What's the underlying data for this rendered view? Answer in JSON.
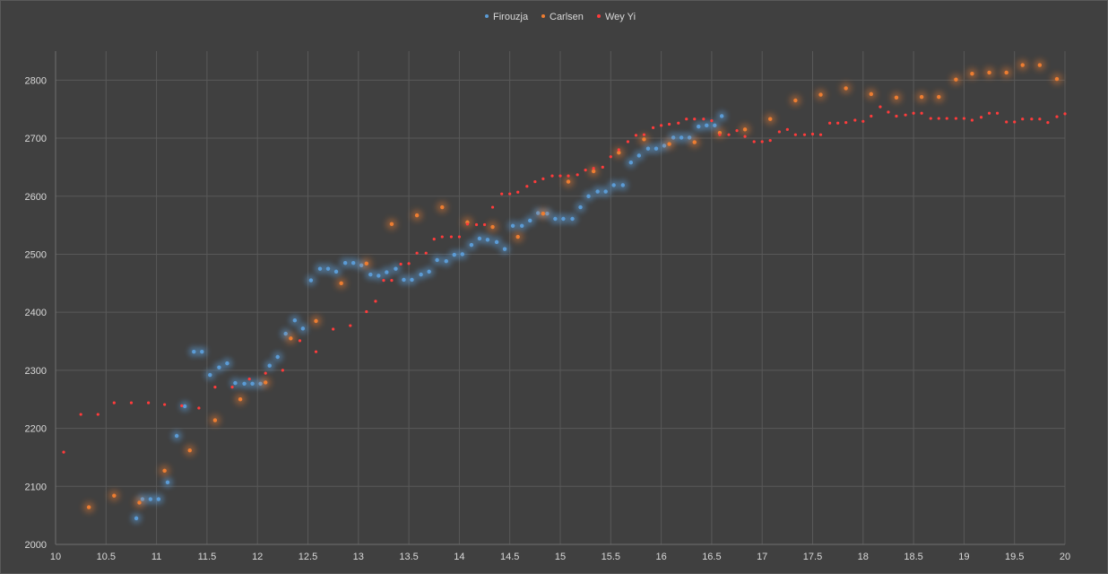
{
  "chart_data": {
    "type": "scatter",
    "title": "",
    "xlabel": "",
    "ylabel": "",
    "xlim": [
      10,
      20
    ],
    "ylim": [
      2000,
      2850
    ],
    "x_ticks": [
      10,
      10.5,
      11,
      11.5,
      12,
      12.5,
      13,
      13.5,
      14,
      14.5,
      15,
      15.5,
      16,
      16.5,
      17,
      17.5,
      18,
      18.5,
      19,
      19.5,
      20
    ],
    "y_ticks": [
      2000,
      2100,
      2200,
      2300,
      2400,
      2500,
      2600,
      2700,
      2800
    ],
    "grid": true,
    "legend_position": "top",
    "series": [
      {
        "name": "Firouzja",
        "color": "#5b9bd5",
        "glow": true,
        "points": [
          [
            10.8,
            2045
          ],
          [
            10.86,
            2078
          ],
          [
            10.94,
            2078
          ],
          [
            11.02,
            2078
          ],
          [
            11.11,
            2107
          ],
          [
            11.2,
            2187
          ],
          [
            11.28,
            2238
          ],
          [
            11.37,
            2332
          ],
          [
            11.45,
            2332
          ],
          [
            11.53,
            2292
          ],
          [
            11.62,
            2305
          ],
          [
            11.7,
            2312
          ],
          [
            11.78,
            2278
          ],
          [
            11.87,
            2277
          ],
          [
            11.95,
            2277
          ],
          [
            12.03,
            2277
          ],
          [
            12.12,
            2308
          ],
          [
            12.2,
            2323
          ],
          [
            12.28,
            2363
          ],
          [
            12.37,
            2386
          ],
          [
            12.45,
            2372
          ],
          [
            12.53,
            2455
          ],
          [
            12.62,
            2475
          ],
          [
            12.7,
            2475
          ],
          [
            12.78,
            2470
          ],
          [
            12.87,
            2485
          ],
          [
            12.95,
            2485
          ],
          [
            13.03,
            2481
          ],
          [
            13.12,
            2465
          ],
          [
            13.2,
            2463
          ],
          [
            13.28,
            2469
          ],
          [
            13.37,
            2475
          ],
          [
            13.45,
            2456
          ],
          [
            13.53,
            2456
          ],
          [
            13.62,
            2465
          ],
          [
            13.7,
            2470
          ],
          [
            13.78,
            2490
          ],
          [
            13.87,
            2488
          ],
          [
            13.95,
            2499
          ],
          [
            14.03,
            2500
          ],
          [
            14.12,
            2516
          ],
          [
            14.2,
            2527
          ],
          [
            14.28,
            2525
          ],
          [
            14.37,
            2521
          ],
          [
            14.45,
            2509
          ],
          [
            14.53,
            2549
          ],
          [
            14.62,
            2549
          ],
          [
            14.7,
            2558
          ],
          [
            14.78,
            2571
          ],
          [
            14.87,
            2570
          ],
          [
            14.95,
            2561
          ],
          [
            15.03,
            2561
          ],
          [
            15.12,
            2561
          ],
          [
            15.2,
            2581
          ],
          [
            15.28,
            2600
          ],
          [
            15.37,
            2608
          ],
          [
            15.45,
            2608
          ],
          [
            15.53,
            2619
          ],
          [
            15.62,
            2619
          ],
          [
            15.7,
            2658
          ],
          [
            15.78,
            2670
          ],
          [
            15.87,
            2682
          ],
          [
            15.95,
            2682
          ],
          [
            16.03,
            2687
          ],
          [
            16.12,
            2701
          ],
          [
            16.2,
            2701
          ],
          [
            16.28,
            2701
          ],
          [
            16.37,
            2720
          ],
          [
            16.45,
            2722
          ],
          [
            16.53,
            2722
          ],
          [
            16.6,
            2738
          ]
        ]
      },
      {
        "name": "Carlsen",
        "color": "#ed7d31",
        "glow": true,
        "points": [
          [
            10.33,
            2064
          ],
          [
            10.58,
            2084
          ],
          [
            10.83,
            2072
          ],
          [
            11.08,
            2127
          ],
          [
            11.33,
            2162
          ],
          [
            11.58,
            2214
          ],
          [
            11.83,
            2250
          ],
          [
            12.08,
            2279
          ],
          [
            12.33,
            2355
          ],
          [
            12.58,
            2385
          ],
          [
            12.83,
            2450
          ],
          [
            13.08,
            2484
          ],
          [
            13.33,
            2552
          ],
          [
            13.58,
            2567
          ],
          [
            13.83,
            2581
          ],
          [
            14.08,
            2555
          ],
          [
            14.33,
            2547
          ],
          [
            14.58,
            2530
          ],
          [
            14.83,
            2570
          ],
          [
            15.08,
            2625
          ],
          [
            15.33,
            2643
          ],
          [
            15.58,
            2675
          ],
          [
            15.83,
            2698
          ],
          [
            16.08,
            2690
          ],
          [
            16.33,
            2693
          ],
          [
            16.58,
            2709
          ],
          [
            16.83,
            2715
          ],
          [
            17.08,
            2733
          ],
          [
            17.33,
            2765
          ],
          [
            17.58,
            2775
          ],
          [
            17.83,
            2786
          ],
          [
            18.08,
            2776
          ],
          [
            18.33,
            2770
          ],
          [
            18.58,
            2771
          ],
          [
            18.75,
            2771
          ],
          [
            18.92,
            2801
          ],
          [
            19.08,
            2811
          ],
          [
            19.25,
            2813
          ],
          [
            19.42,
            2813
          ],
          [
            19.58,
            2826
          ],
          [
            19.75,
            2826
          ],
          [
            19.92,
            2802
          ]
        ]
      },
      {
        "name": "Wey Yi",
        "color": "#ff3b3b",
        "glow": false,
        "points": [
          [
            10.08,
            2159
          ],
          [
            10.25,
            2224
          ],
          [
            10.42,
            2224
          ],
          [
            10.58,
            2244
          ],
          [
            10.75,
            2244
          ],
          [
            10.92,
            2244
          ],
          [
            11.08,
            2241
          ],
          [
            11.25,
            2239
          ],
          [
            11.42,
            2235
          ],
          [
            11.58,
            2271
          ],
          [
            11.75,
            2271
          ],
          [
            11.92,
            2285
          ],
          [
            12.08,
            2295
          ],
          [
            12.25,
            2300
          ],
          [
            12.42,
            2351
          ],
          [
            12.58,
            2332
          ],
          [
            12.75,
            2371
          ],
          [
            12.92,
            2377
          ],
          [
            13.08,
            2401
          ],
          [
            13.17,
            2419
          ],
          [
            13.25,
            2455
          ],
          [
            13.33,
            2455
          ],
          [
            13.42,
            2483
          ],
          [
            13.5,
            2484
          ],
          [
            13.58,
            2502
          ],
          [
            13.67,
            2502
          ],
          [
            13.75,
            2526
          ],
          [
            13.83,
            2530
          ],
          [
            13.92,
            2530
          ],
          [
            14.0,
            2530
          ],
          [
            14.08,
            2552
          ],
          [
            14.17,
            2551
          ],
          [
            14.25,
            2551
          ],
          [
            14.33,
            2581
          ],
          [
            14.42,
            2604
          ],
          [
            14.5,
            2604
          ],
          [
            14.58,
            2607
          ],
          [
            14.67,
            2617
          ],
          [
            14.75,
            2625
          ],
          [
            14.83,
            2630
          ],
          [
            14.92,
            2635
          ],
          [
            15.0,
            2635
          ],
          [
            15.08,
            2635
          ],
          [
            15.17,
            2637
          ],
          [
            15.25,
            2645
          ],
          [
            15.33,
            2648
          ],
          [
            15.42,
            2650
          ],
          [
            15.5,
            2668
          ],
          [
            15.58,
            2680
          ],
          [
            15.67,
            2694
          ],
          [
            15.75,
            2705
          ],
          [
            15.83,
            2706
          ],
          [
            15.92,
            2718
          ],
          [
            16.0,
            2722
          ],
          [
            16.08,
            2724
          ],
          [
            16.17,
            2726
          ],
          [
            16.25,
            2733
          ],
          [
            16.33,
            2733
          ],
          [
            16.42,
            2733
          ],
          [
            16.5,
            2730
          ],
          [
            16.58,
            2706
          ],
          [
            16.67,
            2706
          ],
          [
            16.75,
            2713
          ],
          [
            16.83,
            2703
          ],
          [
            16.92,
            2694
          ],
          [
            17.0,
            2694
          ],
          [
            17.08,
            2696
          ],
          [
            17.17,
            2711
          ],
          [
            17.25,
            2715
          ],
          [
            17.33,
            2706
          ],
          [
            17.42,
            2706
          ],
          [
            17.5,
            2707
          ],
          [
            17.58,
            2706
          ],
          [
            17.67,
            2726
          ],
          [
            17.75,
            2726
          ],
          [
            17.83,
            2727
          ],
          [
            17.92,
            2731
          ],
          [
            18.0,
            2729
          ],
          [
            18.08,
            2738
          ],
          [
            18.17,
            2754
          ],
          [
            18.25,
            2745
          ],
          [
            18.33,
            2738
          ],
          [
            18.42,
            2740
          ],
          [
            18.5,
            2743
          ],
          [
            18.58,
            2743
          ],
          [
            18.67,
            2734
          ],
          [
            18.75,
            2734
          ],
          [
            18.83,
            2734
          ],
          [
            18.92,
            2734
          ],
          [
            19.0,
            2734
          ],
          [
            19.08,
            2731
          ],
          [
            19.17,
            2736
          ],
          [
            19.25,
            2743
          ],
          [
            19.33,
            2743
          ],
          [
            19.42,
            2728
          ],
          [
            19.5,
            2728
          ],
          [
            19.58,
            2733
          ],
          [
            19.67,
            2733
          ],
          [
            19.75,
            2733
          ],
          [
            19.83,
            2727
          ],
          [
            19.92,
            2737
          ],
          [
            20.0,
            2742
          ]
        ]
      }
    ]
  }
}
